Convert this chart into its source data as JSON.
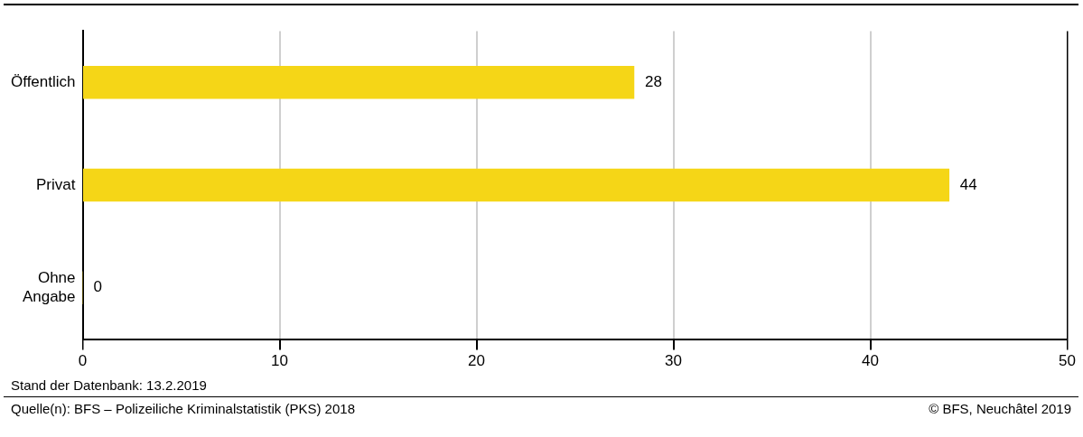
{
  "chart_data": {
    "type": "bar",
    "orientation": "horizontal",
    "categories": [
      "Öffentlich",
      "Privat",
      "Ohne Angabe"
    ],
    "values": [
      28,
      44,
      0
    ],
    "color": "#f5d617",
    "xlim": [
      0,
      50
    ],
    "xticks": [
      0,
      10,
      20,
      30,
      40,
      50
    ],
    "grid": "x",
    "data_labels": true,
    "annotations": [
      "Stand der Datenbank: 13.2.2019",
      "Quelle(n): BFS – Polizeiliche Kriminalstatistik (PKS) 2018",
      "© BFS, Neuchâtel 2019"
    ]
  }
}
